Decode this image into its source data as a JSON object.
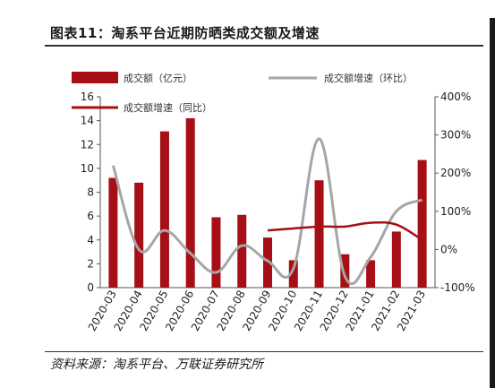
{
  "title": "图表11：淘系平台近期防晒类成交额及增速",
  "source": "资料来源：淘系平台、万联证券研究所",
  "chart_data": {
    "type": "bar",
    "categories": [
      "2020-03",
      "2020-04",
      "2020-05",
      "2020-06",
      "2020-07",
      "2020-08",
      "2020-09",
      "2020-10",
      "2020-11",
      "2020-12",
      "2021-01",
      "2021-02",
      "2021-03"
    ],
    "series": [
      {
        "name": "成交额（亿元）",
        "type": "bar",
        "axis": "left",
        "color": "#a50f15",
        "values": [
          9.2,
          8.8,
          13.1,
          14.2,
          5.9,
          6.1,
          4.2,
          2.3,
          9.0,
          2.8,
          2.3,
          4.7,
          10.7
        ]
      },
      {
        "name": "成交额增速（环比）",
        "type": "line",
        "axis": "right",
        "color": "#a6a6a6",
        "values": [
          220,
          0,
          50,
          -10,
          -60,
          10,
          -30,
          -50,
          290,
          -70,
          -20,
          100,
          130
        ]
      },
      {
        "name": "成交额增速（同比）",
        "type": "line",
        "axis": "right",
        "color": "#a50f15",
        "values": [
          null,
          null,
          null,
          null,
          null,
          null,
          50,
          55,
          60,
          60,
          70,
          65,
          25
        ]
      }
    ],
    "ylim_left": [
      0,
      16
    ],
    "yticks_left": [
      "0",
      "2",
      "4",
      "6",
      "8",
      "10",
      "12",
      "14",
      "16"
    ],
    "ylim_right": [
      -100,
      400
    ],
    "yticks_right": [
      "-100%",
      "0%",
      "100%",
      "200%",
      "300%",
      "400%"
    ],
    "legend_position": "top"
  }
}
